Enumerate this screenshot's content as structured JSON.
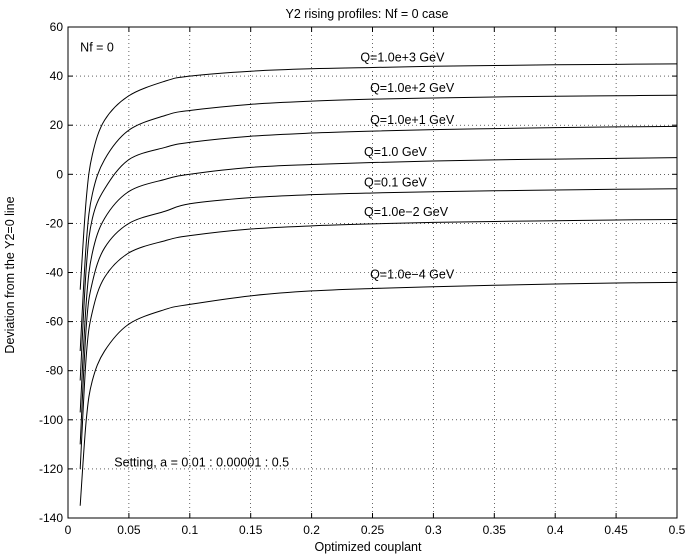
{
  "chart_data": {
    "type": "line",
    "title": "Y2 rising profiles: Nf = 0 case",
    "xlabel": "Optimized couplant",
    "ylabel": "Deviation from the Y2=0 line",
    "xlim": [
      0,
      0.5
    ],
    "ylim": [
      -140,
      60
    ],
    "xticks": [
      0,
      0.05,
      0.1,
      0.15,
      0.2,
      0.25,
      0.3,
      0.35,
      0.4,
      0.45,
      0.5
    ],
    "xtick_labels": [
      "0",
      "0.05",
      "0.1",
      "0.15",
      "0.2",
      "0.25",
      "0.3",
      "0.35",
      "0.4",
      "0.45",
      "0.5"
    ],
    "yticks": [
      -140,
      -120,
      -100,
      -80,
      -60,
      -40,
      -20,
      0,
      20,
      40,
      60
    ],
    "ytick_labels": [
      "-140",
      "-120",
      "-100",
      "-80",
      "-60",
      "-40",
      "-20",
      "0",
      "20",
      "40",
      "60"
    ],
    "grid": true,
    "annotations": [
      {
        "text": "Nf = 0",
        "x": 0.01,
        "y": 50
      },
      {
        "text": "Setting, a = 0.01 : 0.00001 : 0.5",
        "x": 0.038,
        "y": -119
      }
    ],
    "series": [
      {
        "name": "Q=1.0e+3 GeV",
        "x": [
          0.01,
          0.015,
          0.02,
          0.03,
          0.05,
          0.08,
          0.1,
          0.15,
          0.2,
          0.25,
          0.3,
          0.35,
          0.4,
          0.45,
          0.5
        ],
        "y": [
          -47,
          -10,
          8,
          22,
          32,
          38,
          40,
          42,
          43,
          43.5,
          44,
          44.3,
          44.6,
          44.8,
          45
        ],
        "label_at": [
          0.24,
          46
        ]
      },
      {
        "name": "Q=1.0e+2 GeV",
        "x": [
          0.01,
          0.015,
          0.02,
          0.03,
          0.05,
          0.08,
          0.1,
          0.15,
          0.2,
          0.25,
          0.3,
          0.35,
          0.4,
          0.45,
          0.5
        ],
        "y": [
          -72,
          -28,
          -8,
          6,
          18,
          24,
          26,
          28.5,
          29.8,
          30.6,
          31.1,
          31.5,
          31.8,
          32,
          32.2
        ],
        "label_at": [
          0.248,
          33.5
        ]
      },
      {
        "name": "Q=1.0e+1 GeV",
        "x": [
          0.01,
          0.015,
          0.02,
          0.03,
          0.05,
          0.08,
          0.1,
          0.15,
          0.2,
          0.25,
          0.3,
          0.35,
          0.4,
          0.45,
          0.5
        ],
        "y": [
          -84,
          -38,
          -18,
          -6,
          6,
          11,
          13,
          15.5,
          16.8,
          17.6,
          18.2,
          18.6,
          19,
          19.3,
          19.5
        ],
        "label_at": [
          0.248,
          20.5
        ]
      },
      {
        "name": "Q=1.0 GeV",
        "x": [
          0.01,
          0.015,
          0.02,
          0.03,
          0.05,
          0.08,
          0.1,
          0.15,
          0.2,
          0.25,
          0.3,
          0.35,
          0.4,
          0.45,
          0.5
        ],
        "y": [
          -97,
          -52,
          -32,
          -18,
          -7,
          -2,
          0,
          2.8,
          4,
          4.8,
          5.4,
          5.9,
          6.2,
          6.5,
          6.8
        ],
        "label_at": [
          0.243,
          7.5
        ]
      },
      {
        "name": "Q=0.1 GeV",
        "x": [
          0.01,
          0.015,
          0.02,
          0.03,
          0.05,
          0.08,
          0.1,
          0.15,
          0.2,
          0.25,
          0.3,
          0.35,
          0.4,
          0.45,
          0.5
        ],
        "y": [
          -110,
          -62,
          -44,
          -30,
          -20,
          -15,
          -12,
          -9.5,
          -8.3,
          -7.6,
          -7.1,
          -6.7,
          -6.4,
          -6.1,
          -5.9
        ],
        "label_at": [
          0.243,
          -5
        ]
      },
      {
        "name": "Q=1.0e−2 GeV",
        "x": [
          0.01,
          0.015,
          0.02,
          0.03,
          0.05,
          0.08,
          0.1,
          0.15,
          0.2,
          0.25,
          0.3,
          0.35,
          0.4,
          0.45,
          0.5
        ],
        "y": [
          -120,
          -74,
          -56,
          -42,
          -32,
          -27,
          -25,
          -22.3,
          -21,
          -20.2,
          -19.6,
          -19.2,
          -18.9,
          -18.6,
          -18.4
        ],
        "label_at": [
          0.243,
          -17
        ]
      },
      {
        "name": "Q=1.0e−4 GeV",
        "x": [
          0.01,
          0.015,
          0.02,
          0.03,
          0.05,
          0.08,
          0.1,
          0.15,
          0.2,
          0.25,
          0.3,
          0.35,
          0.4,
          0.45,
          0.5
        ],
        "y": [
          -135,
          -100,
          -84,
          -72,
          -61,
          -55,
          -53,
          -49.5,
          -47.5,
          -46.5,
          -45.8,
          -45.2,
          -44.7,
          -44.3,
          -44
        ],
        "label_at": [
          0.248,
          -42.5
        ]
      }
    ]
  }
}
